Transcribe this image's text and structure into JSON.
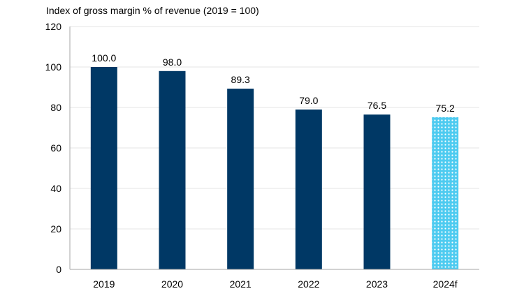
{
  "chart_data": {
    "type": "bar",
    "title": "Index of gross margin % of revenue (2019 = 100)",
    "xlabel": "",
    "ylabel": "",
    "categories": [
      "2019",
      "2020",
      "2021",
      "2022",
      "2023",
      "2024f"
    ],
    "values": [
      100.0,
      98.0,
      89.3,
      79.0,
      76.5,
      75.2
    ],
    "data_labels": [
      "100.0",
      "98.0",
      "89.3",
      "79.0",
      "76.5",
      "75.2"
    ],
    "forecast": [
      false,
      false,
      false,
      false,
      false,
      true
    ],
    "ylim": [
      0,
      120
    ],
    "yticks": [
      0,
      20,
      40,
      60,
      80,
      100,
      120
    ],
    "grid": true,
    "legend": "none",
    "colors": {
      "actual": "#003865",
      "forecast": "#4ecbf0",
      "grid": "#e6e6e6",
      "axis": "#a6a6a6"
    }
  }
}
